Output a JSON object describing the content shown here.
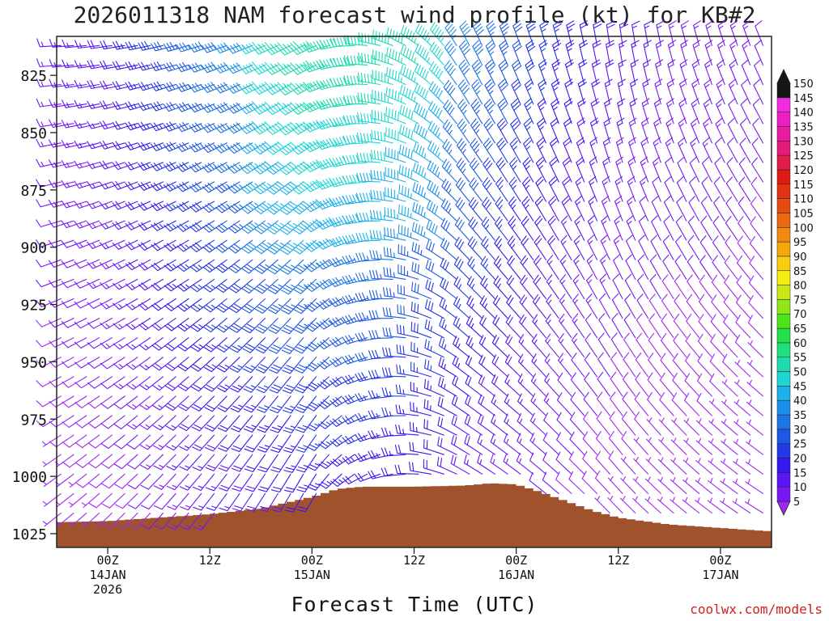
{
  "chart_data": {
    "type": "wind-barb-profile",
    "title": "2026011318 NAM forecast wind profile (kt) for KB#2",
    "xlabel": "Forecast Time (UTC)",
    "credit": "coolwx.com/models",
    "y_axis": {
      "label": "",
      "scale": "pressure (hPa), increasing downward",
      "range": [
        808,
        1031
      ],
      "ticks": [
        825,
        850,
        875,
        900,
        925,
        950,
        975,
        1000,
        1025
      ]
    },
    "x_axis": {
      "ticks": [
        {
          "hour": 6,
          "lines": [
            "00Z",
            "14JAN",
            "2026"
          ]
        },
        {
          "hour": 18,
          "lines": [
            "12Z"
          ]
        },
        {
          "hour": 30,
          "lines": [
            "00Z",
            "15JAN"
          ]
        },
        {
          "hour": 42,
          "lines": [
            "12Z"
          ]
        },
        {
          "hour": 54,
          "lines": [
            "00Z",
            "16JAN"
          ]
        },
        {
          "hour": 66,
          "lines": [
            "12Z"
          ]
        },
        {
          "hour": 78,
          "lines": [
            "00Z",
            "17JAN"
          ]
        }
      ]
    },
    "colorbar": {
      "levels": [
        5,
        10,
        15,
        20,
        25,
        30,
        35,
        40,
        45,
        50,
        55,
        60,
        65,
        70,
        75,
        80,
        85,
        90,
        95,
        100,
        105,
        110,
        115,
        120,
        125,
        130,
        135,
        140,
        145,
        150
      ],
      "colors": [
        "#9d27f2",
        "#7a18f5",
        "#5a16f3",
        "#3418ef",
        "#2237e6",
        "#1d59e3",
        "#1d75e3",
        "#1c8fe8",
        "#1cb1ea",
        "#1ed6d2",
        "#1fdbaf",
        "#1fe07d",
        "#25e04a",
        "#4fe41a",
        "#8fe71a",
        "#c8ea12",
        "#f2ec12",
        "#f8cf0e",
        "#f6a80b",
        "#f28a12",
        "#ea6a12",
        "#e64b12",
        "#e33312",
        "#e01c12",
        "#e21b4a",
        "#e51b7a",
        "#e81ba3",
        "#ec1ec4",
        "#f12be0",
        "#151515"
      ]
    },
    "terrain": {
      "color": "#a0522d",
      "hours": [
        0,
        6,
        12,
        18,
        24,
        27,
        30,
        33,
        36,
        42,
        48,
        51,
        54,
        57,
        60,
        63,
        66,
        72,
        78,
        84
      ],
      "surface_pressure_hpa": [
        1020,
        1019.5,
        1018,
        1016.5,
        1014,
        1011.5,
        1009,
        1005.5,
        1004.5,
        1004.5,
        1004,
        1003,
        1003.5,
        1007,
        1011,
        1015,
        1018,
        1021,
        1022.5,
        1024
      ]
    },
    "series": [
      {
        "speeds_kt_by_hour": [
          [
            0,
            10
          ],
          [
            6,
            12
          ],
          [
            12,
            18
          ],
          [
            18,
            25
          ],
          [
            24,
            30
          ],
          [
            30,
            35
          ],
          [
            36,
            35
          ],
          [
            42,
            33
          ],
          [
            48,
            28
          ],
          [
            54,
            22
          ],
          [
            60,
            16
          ],
          [
            66,
            12
          ],
          [
            72,
            10
          ],
          [
            78,
            10
          ],
          [
            84,
            8
          ]
        ]
      }
    ]
  }
}
